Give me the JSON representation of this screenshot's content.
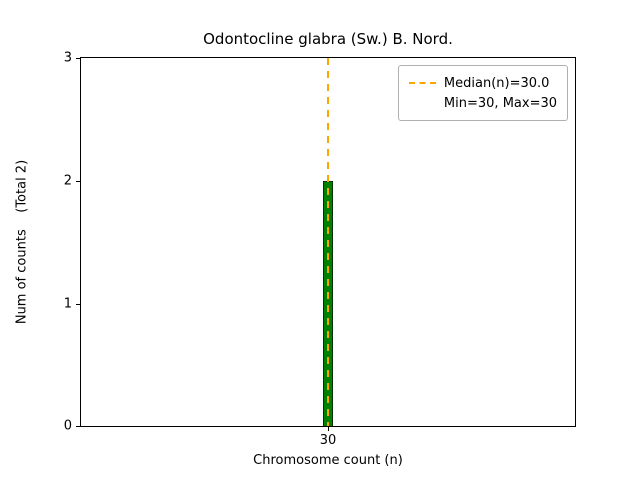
{
  "title": "Odontocline glabra (Sw.) B. Nord.",
  "axes": {
    "xlabel": "Chromosome count (n)",
    "ylabel": "Num of counts    (Total 2)",
    "x_ticks": [
      "30"
    ],
    "y_ticks": [
      "3",
      "2",
      "1",
      "0"
    ]
  },
  "legend": {
    "entries": [
      {
        "label": "Median(n)=30.0",
        "handle": "dashed-line"
      },
      {
        "label": "Min=30, Max=30",
        "handle": "none"
      }
    ]
  },
  "colors": {
    "bar_fill": "#008000",
    "bar_edge": "#0b2e0b",
    "median_line": "#ffa500"
  },
  "chart_data": {
    "type": "bar",
    "categories": [
      30
    ],
    "values": [
      2
    ],
    "title": "Odontocline glabra (Sw.) B. Nord.",
    "xlabel": "Chromosome count (n)",
    "ylabel": "Num of counts (Total 2)",
    "ylim": [
      0,
      3
    ],
    "y_ticks": [
      0,
      1,
      2,
      3
    ],
    "x_tick_labels": [
      "30"
    ],
    "annotations": {
      "median": 30.0,
      "min": 30,
      "max": 30,
      "total_counts": 2
    },
    "legend_entries": [
      "Median(n)=30.0",
      "Min=30, Max=30"
    ],
    "legend_position": "upper right",
    "grid": false
  }
}
